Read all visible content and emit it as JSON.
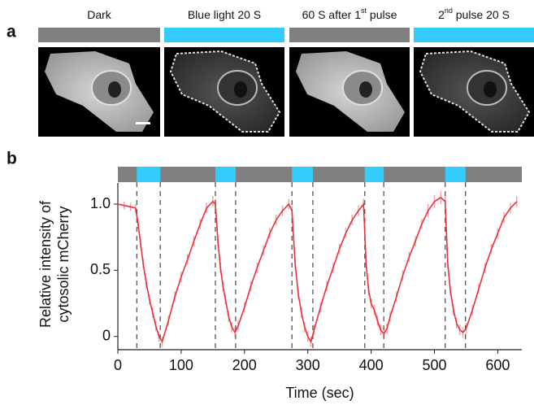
{
  "panel_a": {
    "letter": "a",
    "labels": [
      {
        "text": "Dark",
        "bar_color": "#808080"
      },
      {
        "text": "Blue light 20 S",
        "bar_color": "#33ccff"
      },
      {
        "text": "60 S after 1",
        "sup": "st",
        "after": " pulse",
        "bar_color": "#808080"
      },
      {
        "text": "2",
        "sup": "nd",
        "after": " pulse 20 S",
        "bar_color": "#33ccff"
      }
    ]
  },
  "chart_data": {
    "type": "line",
    "letter": "b",
    "xlabel": "Time (sec)",
    "ylabel_lines": [
      "Relative intensity of",
      "cytosolic mCherry"
    ],
    "xlim": [
      0,
      638
    ],
    "ylim": [
      -0.1,
      1.16
    ],
    "xticks": [
      0,
      100,
      200,
      300,
      400,
      500,
      600
    ],
    "yticks": [
      0,
      0.5,
      {
        "value": 1,
        "label": "1.0"
      }
    ],
    "stimulus_color": "#33ccff",
    "rest_color": "#808080",
    "stimuli": [
      [
        30,
        67
      ],
      [
        154,
        186
      ],
      [
        275,
        308
      ],
      [
        390,
        420
      ],
      [
        517,
        549
      ]
    ],
    "series": [
      {
        "color": "#e8313a",
        "x": [
          0,
          10,
          20,
          28,
          32,
          36,
          40,
          45,
          50,
          55,
          60,
          65,
          70,
          80,
          90,
          100,
          110,
          120,
          130,
          140,
          150,
          154,
          158,
          162,
          166,
          170,
          175,
          180,
          185,
          190,
          200,
          210,
          220,
          230,
          240,
          250,
          260,
          270,
          275,
          280,
          285,
          290,
          295,
          300,
          305,
          310,
          320,
          330,
          340,
          350,
          360,
          370,
          380,
          388,
          392,
          396,
          400,
          405,
          410,
          415,
          420,
          425,
          430,
          440,
          450,
          460,
          470,
          480,
          490,
          500,
          510,
          517,
          521,
          525,
          530,
          535,
          540,
          545,
          550,
          560,
          570,
          580,
          590,
          600,
          610,
          620,
          630
        ],
        "values": [
          1.0,
          0.99,
          0.98,
          0.97,
          0.85,
          0.7,
          0.55,
          0.4,
          0.28,
          0.18,
          0.08,
          0.0,
          -0.04,
          0.12,
          0.3,
          0.45,
          0.58,
          0.72,
          0.85,
          0.97,
          1.02,
          1.0,
          0.72,
          0.52,
          0.38,
          0.28,
          0.15,
          0.07,
          0.03,
          0.08,
          0.22,
          0.38,
          0.52,
          0.65,
          0.78,
          0.88,
          0.95,
          1.0,
          0.95,
          0.55,
          0.32,
          0.18,
          0.07,
          0.0,
          -0.04,
          0.05,
          0.22,
          0.38,
          0.52,
          0.66,
          0.78,
          0.88,
          0.95,
          1.0,
          0.55,
          0.35,
          0.25,
          0.2,
          0.12,
          0.05,
          0.02,
          0.06,
          0.15,
          0.3,
          0.46,
          0.6,
          0.72,
          0.85,
          0.95,
          1.02,
          1.05,
          1.02,
          0.55,
          0.35,
          0.2,
          0.1,
          0.05,
          0.03,
          0.06,
          0.2,
          0.36,
          0.52,
          0.66,
          0.78,
          0.9,
          0.97,
          1.02
        ],
        "errors": [
          0.03,
          0.03,
          0.03,
          0.03,
          0.04,
          0.04,
          0.04,
          0.04,
          0.04,
          0.04,
          0.04,
          0.04,
          0.04,
          0.04,
          0.04,
          0.04,
          0.04,
          0.04,
          0.04,
          0.04,
          0.04,
          0.04,
          0.04,
          0.04,
          0.04,
          0.04,
          0.04,
          0.04,
          0.04,
          0.04,
          0.04,
          0.04,
          0.04,
          0.04,
          0.04,
          0.04,
          0.04,
          0.04,
          0.04,
          0.04,
          0.04,
          0.04,
          0.04,
          0.04,
          0.04,
          0.04,
          0.04,
          0.04,
          0.04,
          0.04,
          0.04,
          0.04,
          0.04,
          0.04,
          0.04,
          0.04,
          0.04,
          0.04,
          0.04,
          0.04,
          0.04,
          0.04,
          0.04,
          0.04,
          0.04,
          0.04,
          0.04,
          0.04,
          0.05,
          0.05,
          0.05,
          0.05,
          0.04,
          0.04,
          0.04,
          0.04,
          0.04,
          0.04,
          0.04,
          0.04,
          0.04,
          0.04,
          0.04,
          0.04,
          0.04,
          0.04,
          0.04
        ]
      }
    ]
  }
}
